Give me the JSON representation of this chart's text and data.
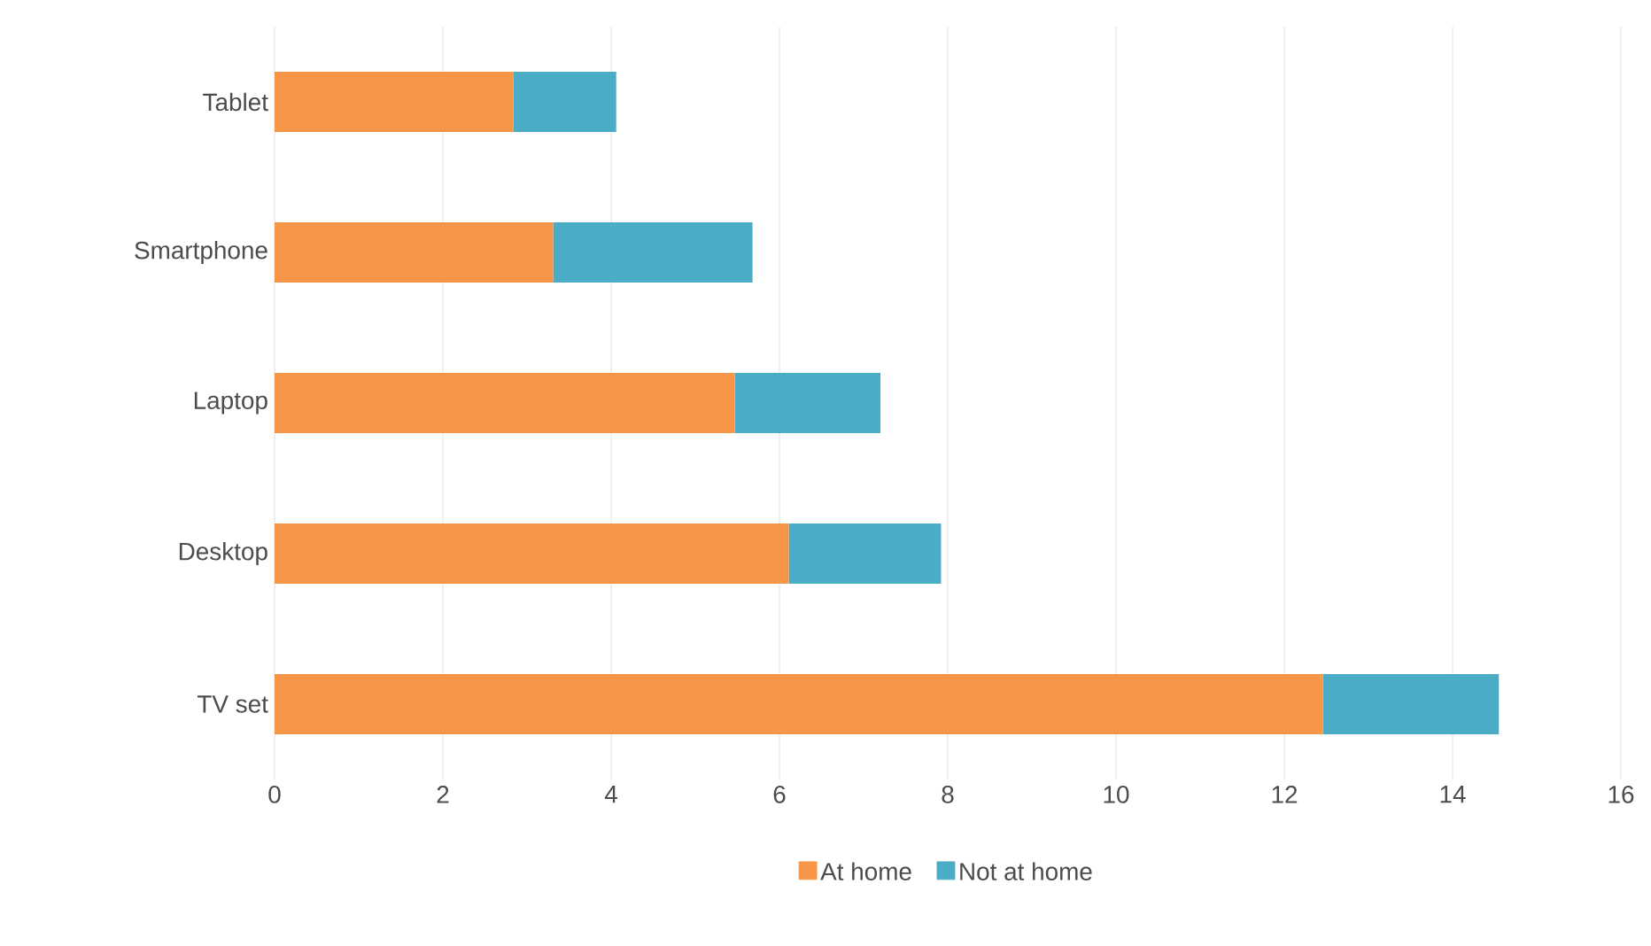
{
  "chart_data": {
    "type": "bar",
    "orientation": "horizontal",
    "stacked": true,
    "categories": [
      "Tablet",
      "Smartphone",
      "Laptop",
      "Desktop",
      "TV set"
    ],
    "series": [
      {
        "name": "At home",
        "color": "#f79646",
        "values": [
          2.84,
          3.31,
          5.47,
          6.11,
          12.46
        ]
      },
      {
        "name": "Not at home",
        "color": "#4bacc6",
        "values": [
          1.22,
          2.37,
          1.73,
          1.81,
          2.09
        ]
      }
    ],
    "xlim": [
      0,
      16
    ],
    "xticks": [
      0,
      2,
      4,
      6,
      8,
      10,
      12,
      14,
      16
    ],
    "grid": "x",
    "legend": "bottom"
  }
}
